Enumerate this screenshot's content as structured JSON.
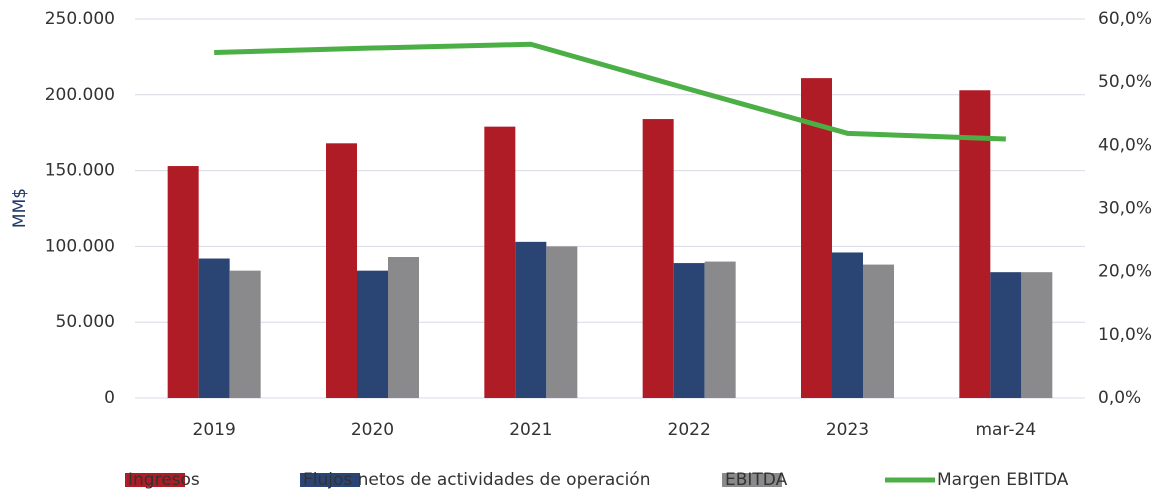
{
  "chart_data": {
    "type": "bar_line",
    "categories": [
      "2019",
      "2020",
      "2021",
      "2022",
      "2023",
      "mar-24"
    ],
    "ylabel": "MM$",
    "ylim": [
      0,
      250000
    ],
    "yticks": [
      0,
      {
        "value": 50000,
        "label": "50.000"
      },
      {
        "value": 100000,
        "label": "100.000"
      },
      {
        "value": 150000,
        "label": "150.000"
      },
      {
        "value": 200000,
        "label": "200.000"
      },
      {
        "value": 250000,
        "label": "250.000"
      }
    ],
    "y2lim": [
      0,
      60
    ],
    "y2ticks": [
      {
        "value": 0,
        "label": "0,0%"
      },
      {
        "value": 10,
        "label": "10,0%"
      },
      {
        "value": 20,
        "label": "20,0%"
      },
      {
        "value": 30,
        "label": "30,0%"
      },
      {
        "value": 40,
        "label": "40,0%"
      },
      {
        "value": 50,
        "label": "50,0%"
      },
      {
        "value": 60,
        "label": "60,0%"
      }
    ],
    "grid": true,
    "legend": "bottom",
    "series": [
      {
        "name": "Ingresos",
        "type": "bar",
        "color": "#b01c25",
        "values": [
          153000,
          168000,
          179000,
          184000,
          211000,
          203000
        ]
      },
      {
        "name": "Flujos netos de actividades de operación",
        "type": "bar",
        "color": "#2a4474",
        "values": [
          92000,
          84000,
          103000,
          89000,
          96000,
          83000
        ]
      },
      {
        "name": "EBITDA",
        "type": "bar",
        "color": "#8a8a8c",
        "values": [
          84000,
          93000,
          100000,
          90000,
          88000,
          83000
        ]
      },
      {
        "name": "Margen EBITDA",
        "type": "line",
        "axis": "y2",
        "color": "#4caf45",
        "values": [
          54.7,
          55.4,
          56.0,
          48.9,
          41.9,
          41.0
        ]
      }
    ]
  }
}
